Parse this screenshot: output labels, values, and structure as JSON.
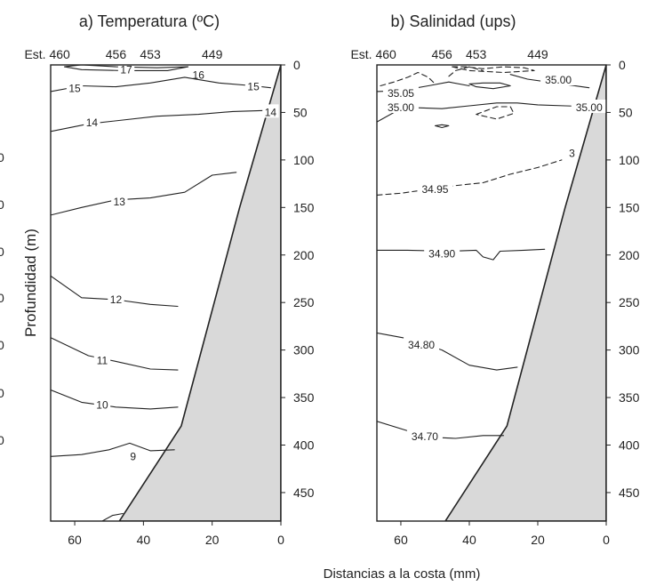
{
  "figure": {
    "x_label": "Distancias a la costa (mm)",
    "y_label": "Profundidad (m)",
    "left_axis_tick_glimpses": [
      "0",
      "0",
      "0",
      "0",
      "0",
      "0",
      "0"
    ],
    "colors": {
      "bathymetry": "#d9d9d9",
      "line": "#222222"
    }
  },
  "chart_data": [
    {
      "type": "contour",
      "title": "a) Temperatura (ºC)",
      "station_labels": [
        {
          "label": "Est. 460",
          "distance": 68
        },
        {
          "label": "456",
          "distance": 48
        },
        {
          "label": "453",
          "distance": 38
        },
        {
          "label": "449",
          "distance": 20
        }
      ],
      "x_axis": {
        "lim": [
          67,
          0
        ],
        "ticks": [
          60,
          40,
          20,
          0
        ],
        "direction": "decreasing"
      },
      "y_axis": {
        "lim": [
          0,
          480
        ],
        "ticks": [
          0,
          50,
          100,
          150,
          200,
          250,
          300,
          350,
          400,
          450
        ],
        "inverted": true
      },
      "bottom_profile": [
        [
          0,
          0
        ],
        [
          12,
          150
        ],
        [
          29,
          380
        ],
        [
          47,
          480
        ]
      ],
      "contours": [
        {
          "label": "17",
          "dashed": false,
          "closed": true,
          "points": [
            [
              63,
              2
            ],
            [
              58,
              0
            ],
            [
              48,
              2
            ],
            [
              36,
              3
            ],
            [
              27,
              2
            ],
            [
              33,
              6
            ],
            [
              46,
              6
            ],
            [
              58,
              5
            ],
            [
              63,
              2
            ]
          ],
          "labels": [
            {
              "text": "17",
              "at": [
                45,
                4
              ]
            },
            {
              "text": "16",
              "at": [
                24,
                10
              ]
            }
          ]
        },
        {
          "label": "15",
          "dashed": false,
          "closed": false,
          "points": [
            [
              67,
              28
            ],
            [
              58,
              22
            ],
            [
              48,
              23
            ],
            [
              38,
              19
            ],
            [
              28,
              13
            ],
            [
              18,
              19
            ],
            [
              8,
              22
            ],
            [
              3,
              24
            ]
          ],
          "labels": [
            {
              "text": "15",
              "at": [
                60,
                24
              ]
            },
            {
              "text": "15",
              "at": [
                8,
                22
              ]
            }
          ]
        },
        {
          "label": "14",
          "dashed": false,
          "closed": false,
          "points": [
            [
              67,
              70
            ],
            [
              56,
              62
            ],
            [
              46,
              58
            ],
            [
              36,
              54
            ],
            [
              24,
              52
            ],
            [
              14,
              49
            ],
            [
              5,
              48
            ]
          ],
          "labels": [
            {
              "text": "14",
              "at": [
                55,
                60
              ]
            },
            {
              "text": "14",
              "at": [
                3,
                49
              ]
            }
          ]
        },
        {
          "label": "13",
          "dashed": false,
          "closed": false,
          "points": [
            [
              67,
              158
            ],
            [
              58,
              150
            ],
            [
              48,
              142
            ],
            [
              38,
              140
            ],
            [
              28,
              134
            ],
            [
              20,
              116
            ],
            [
              13,
              113
            ]
          ],
          "labels": [
            {
              "text": "13",
              "at": [
                47,
                143
              ]
            }
          ]
        },
        {
          "label": "12",
          "dashed": false,
          "closed": false,
          "points": [
            [
              67,
              222
            ],
            [
              58,
              245
            ],
            [
              48,
              247
            ],
            [
              38,
              252
            ],
            [
              30,
              254
            ]
          ],
          "labels": [
            {
              "text": "12",
              "at": [
                48,
                246
              ]
            }
          ]
        },
        {
          "label": "11",
          "dashed": false,
          "closed": false,
          "points": [
            [
              67,
              287
            ],
            [
              56,
              306
            ],
            [
              48,
              312
            ],
            [
              38,
              320
            ],
            [
              30,
              321
            ]
          ],
          "labels": [
            {
              "text": "11",
              "at": [
                52,
                310
              ]
            }
          ]
        },
        {
          "label": "10",
          "dashed": false,
          "closed": false,
          "points": [
            [
              67,
              342
            ],
            [
              58,
              355
            ],
            [
              48,
              360
            ],
            [
              38,
              362
            ],
            [
              30,
              360
            ]
          ],
          "labels": [
            {
              "text": "10",
              "at": [
                52,
                357
              ]
            }
          ]
        },
        {
          "label": "9",
          "dashed": false,
          "closed": false,
          "points": [
            [
              67,
              412
            ],
            [
              58,
              410
            ],
            [
              50,
              405
            ],
            [
              44,
              398
            ],
            [
              38,
              406
            ],
            [
              31,
              405
            ]
          ],
          "labels": [
            {
              "text": "9",
              "at": [
                43,
                411
              ]
            }
          ]
        },
        {
          "label": "",
          "dashed": false,
          "closed": false,
          "points": [
            [
              52,
              480
            ],
            [
              49,
              474
            ],
            [
              46,
              472
            ]
          ],
          "labels": []
        }
      ]
    },
    {
      "type": "contour",
      "title": "b) Salinidad (ups)",
      "station_labels": [
        {
          "label": "Est. 460",
          "distance": 68
        },
        {
          "label": "456",
          "distance": 48
        },
        {
          "label": "453",
          "distance": 38
        },
        {
          "label": "449",
          "distance": 20
        }
      ],
      "x_axis": {
        "lim": [
          67,
          0
        ],
        "ticks": [
          60,
          40,
          20,
          0
        ],
        "direction": "decreasing"
      },
      "y_axis": {
        "lim": [
          0,
          480
        ],
        "ticks": [
          0,
          50,
          100,
          150,
          200,
          250,
          300,
          350,
          400,
          450
        ],
        "inverted": true
      },
      "bottom_profile": [
        [
          0,
          0
        ],
        [
          12,
          150
        ],
        [
          29,
          380
        ],
        [
          47,
          480
        ]
      ],
      "contours": [
        {
          "label": "35.00",
          "dashed": false,
          "closed": false,
          "points": [
            [
              5,
              24
            ],
            [
              13,
              20
            ],
            [
              23,
              15
            ],
            [
              28,
              10
            ]
          ],
          "labels": [
            {
              "text": "35.00",
              "at": [
                14,
                15
              ]
            }
          ]
        },
        {
          "label": "35.05",
          "dashed": false,
          "closed": false,
          "points": [
            [
              67,
              28
            ],
            [
              60,
              27
            ],
            [
              52,
              22
            ],
            [
              46,
              18
            ],
            [
              40,
              22
            ]
          ],
          "labels": [
            {
              "text": "35.05",
              "at": [
                60,
                29
              ]
            }
          ]
        },
        {
          "label": "",
          "dashed": false,
          "closed": true,
          "points": [
            [
              40,
              20
            ],
            [
              38,
              23
            ],
            [
              33,
              25
            ],
            [
              28,
              22
            ],
            [
              31,
              19
            ],
            [
              36,
              19
            ],
            [
              40,
              20
            ]
          ],
          "labels": []
        },
        {
          "label": "",
          "dashed": true,
          "closed": false,
          "points": [
            [
              66,
              22
            ],
            [
              62,
              18
            ],
            [
              58,
              13
            ],
            [
              55,
              8
            ],
            [
              52,
              13
            ],
            [
              50,
              20
            ]
          ],
          "labels": []
        },
        {
          "label": "",
          "dashed": true,
          "closed": false,
          "points": [
            [
              46,
              12
            ],
            [
              44,
              6
            ],
            [
              40,
              2
            ],
            [
              36,
              6
            ]
          ],
          "labels": []
        },
        {
          "label": "",
          "dashed": true,
          "closed": true,
          "points": [
            [
              45,
              2
            ],
            [
              41,
              2
            ],
            [
              36,
              4
            ],
            [
              30,
              2
            ],
            [
              24,
              3
            ],
            [
              21,
              6
            ],
            [
              30,
              8
            ],
            [
              40,
              6
            ],
            [
              45,
              2
            ]
          ],
          "labels": []
        },
        {
          "label": "35.00",
          "dashed": false,
          "closed": false,
          "points": [
            [
              67,
              60
            ],
            [
              62,
              50
            ],
            [
              56,
              45
            ],
            [
              48,
              46
            ],
            [
              40,
              43
            ],
            [
              32,
              40
            ],
            [
              26,
              40
            ],
            [
              20,
              42
            ],
            [
              12,
              43
            ],
            [
              4,
              44
            ]
          ],
          "labels": [
            {
              "text": "35.00",
              "at": [
                60,
                44
              ]
            },
            {
              "text": "35.00",
              "at": [
                5,
                44
              ]
            }
          ]
        },
        {
          "label": "",
          "dashed": true,
          "closed": true,
          "points": [
            [
              38,
              52
            ],
            [
              35,
              48
            ],
            [
              32,
              44
            ],
            [
              28,
              44
            ],
            [
              27,
              51
            ],
            [
              32,
              57
            ],
            [
              38,
              52
            ]
          ],
          "labels": []
        },
        {
          "label": "",
          "dashed": false,
          "closed": true,
          "points": [
            [
              50,
              64
            ],
            [
              48,
              63
            ],
            [
              46,
              64
            ],
            [
              48,
              66
            ],
            [
              50,
              64
            ]
          ],
          "labels": []
        },
        {
          "label": "34.95",
          "dashed": true,
          "closed": false,
          "points": [
            [
              67,
              137
            ],
            [
              60,
              135
            ],
            [
              52,
              131
            ],
            [
              44,
              127
            ],
            [
              36,
              124
            ],
            [
              28,
              115
            ],
            [
              20,
              108
            ],
            [
              13,
              100
            ]
          ],
          "labels": [
            {
              "text": "34.95",
              "at": [
                50,
                130
              ]
            },
            {
              "text": "3",
              "at": [
                10,
                92
              ]
            }
          ]
        },
        {
          "label": "34.90",
          "dashed": false,
          "closed": false,
          "points": [
            [
              67,
              195
            ],
            [
              58,
              195
            ],
            [
              46,
              196
            ],
            [
              38,
              195
            ],
            [
              36,
              202
            ],
            [
              33,
              205
            ],
            [
              31,
              196
            ],
            [
              24,
              195
            ],
            [
              18,
              194
            ]
          ],
          "labels": [
            {
              "text": "34.90",
              "at": [
                48,
                198
              ]
            }
          ]
        },
        {
          "label": "34.80",
          "dashed": false,
          "closed": false,
          "points": [
            [
              67,
              282
            ],
            [
              58,
              288
            ],
            [
              48,
              300
            ],
            [
              40,
              316
            ],
            [
              32,
              321
            ],
            [
              26,
              318
            ]
          ],
          "labels": [
            {
              "text": "34.80",
              "at": [
                54,
                294
              ]
            }
          ]
        },
        {
          "label": "34.70",
          "dashed": false,
          "closed": false,
          "points": [
            [
              67,
              375
            ],
            [
              58,
              385
            ],
            [
              50,
              392
            ],
            [
              44,
              393
            ],
            [
              36,
              390
            ],
            [
              30,
              390
            ]
          ],
          "labels": [
            {
              "text": "34.70",
              "at": [
                53,
                390
              ]
            }
          ]
        }
      ]
    }
  ]
}
